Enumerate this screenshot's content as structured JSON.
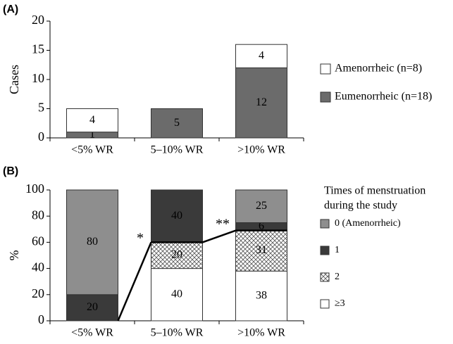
{
  "chart_data": [
    {
      "type": "stacked_bar",
      "panel_label": "(A)",
      "ylabel": "Cases",
      "categories": [
        "<5% WR",
        "5–10% WR",
        ">10% WR"
      ],
      "series": [
        {
          "name": "Eumenorrheic (n=18)",
          "color": "#6b6b6b",
          "values": [
            1,
            5,
            12
          ]
        },
        {
          "name": "Amenorrheic (n=8)",
          "color": "#ffffff",
          "values": [
            4,
            0,
            4
          ]
        }
      ],
      "ylim": [
        0,
        20
      ],
      "yticks": [
        0,
        5,
        10,
        15,
        20
      ]
    },
    {
      "type": "stacked_bar",
      "panel_label": "(B)",
      "ylabel": "%",
      "categories": [
        "<5% WR",
        "5–10% WR",
        ">10% WR"
      ],
      "legend_title": [
        "Times of menstruation",
        "during the study"
      ],
      "series": [
        {
          "name": "≥3",
          "color": "#ffffff",
          "values": [
            0,
            40,
            38
          ]
        },
        {
          "name": "2",
          "color": "#ffffff",
          "pattern": "crosshatch",
          "values": [
            0,
            20,
            31
          ]
        },
        {
          "name": "1",
          "color": "#3a3a3a",
          "values": [
            20,
            40,
            6
          ]
        },
        {
          "name": "0 (Amenorrheic)",
          "color": "#8e8e8e",
          "values": [
            80,
            0,
            25
          ]
        }
      ],
      "annotations": [
        "*",
        "**"
      ],
      "ylim": [
        0,
        100
      ],
      "yticks": [
        0,
        20,
        40,
        60,
        80,
        100
      ]
    }
  ]
}
